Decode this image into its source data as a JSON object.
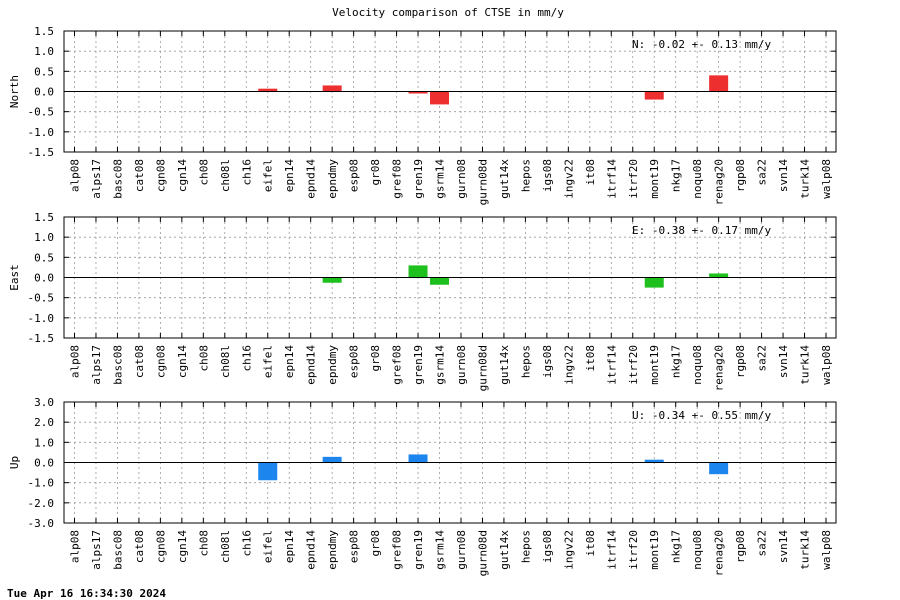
{
  "title": "Velocity comparison of CTSE in mm/y",
  "footer_timestamp": "Tue Apr 16 16:34:30 2024",
  "chart_data": [
    {
      "type": "bar",
      "ylabel": "North",
      "color": "#ee2f2f",
      "ylim": [
        -1.5,
        1.5
      ],
      "yticks": [
        "1.5",
        "1.0",
        "0.5",
        "0.0",
        "-0.5",
        "-1.0",
        "-1.5"
      ],
      "ytick_values": [
        1.5,
        1.0,
        0.5,
        0.0,
        -0.5,
        -1.0,
        -1.5
      ],
      "annotation": "N:  -0.02 +-  0.13 mm/y",
      "grid": true,
      "categories": [
        "alp08",
        "alps17",
        "basc08",
        "cat08",
        "cgn08",
        "cgn14",
        "ch08",
        "ch08l",
        "ch16",
        "eifel",
        "epn14",
        "epnd14",
        "epndmy",
        "esp08",
        "gr08",
        "gref08",
        "gren19",
        "gsrm14",
        "gurn08",
        "gurn08d",
        "gut14x",
        "hepos",
        "igs08",
        "ingv22",
        "it08",
        "itrf14",
        "itrf20",
        "mont19",
        "nkg17",
        "noqu08",
        "renag20",
        "rgp08",
        "sa22",
        "svn14",
        "turk14",
        "walp08"
      ],
      "values": [
        0,
        0,
        0,
        0,
        0,
        0,
        0,
        0,
        0,
        0.07,
        0,
        0,
        0.15,
        0,
        0,
        0,
        -0.05,
        -0.32,
        0,
        0,
        0,
        0,
        0,
        0,
        0,
        0,
        0,
        -0.2,
        0,
        0,
        0.4,
        0,
        0,
        0,
        0,
        0
      ]
    },
    {
      "type": "bar",
      "ylabel": "East",
      "color": "#1ec01e",
      "ylim": [
        -1.5,
        1.5
      ],
      "yticks": [
        "1.5",
        "1.0",
        "0.5",
        "0.0",
        "-0.5",
        "-1.0",
        "-1.5"
      ],
      "ytick_values": [
        1.5,
        1.0,
        0.5,
        0.0,
        -0.5,
        -1.0,
        -1.5
      ],
      "annotation": "E:  -0.38 +-  0.17 mm/y",
      "grid": true,
      "categories": [
        "alp08",
        "alps17",
        "basc08",
        "cat08",
        "cgn08",
        "cgn14",
        "ch08",
        "ch08l",
        "ch16",
        "eifel",
        "epn14",
        "epnd14",
        "epndmy",
        "esp08",
        "gr08",
        "gref08",
        "gren19",
        "gsrm14",
        "gurn08",
        "gurn08d",
        "gut14x",
        "hepos",
        "igs08",
        "ingv22",
        "it08",
        "itrf14",
        "itrf20",
        "mont19",
        "nkg17",
        "noqu08",
        "renag20",
        "rgp08",
        "sa22",
        "svn14",
        "turk14",
        "walp08"
      ],
      "values": [
        0,
        0,
        0,
        0,
        0,
        0,
        0,
        0,
        0,
        0,
        0,
        0,
        -0.13,
        0,
        0,
        0,
        0.3,
        -0.18,
        0,
        0,
        0,
        0,
        0,
        0,
        0,
        0,
        0,
        -0.25,
        0,
        0,
        0.1,
        0,
        0,
        0,
        0,
        0
      ]
    },
    {
      "type": "bar",
      "ylabel": "Up",
      "color": "#1c86ee",
      "ylim": [
        -3.0,
        3.0
      ],
      "yticks": [
        "3.0",
        "2.0",
        "1.0",
        "0.0",
        "-1.0",
        "-2.0",
        "-3.0"
      ],
      "ytick_values": [
        3.0,
        2.0,
        1.0,
        0.0,
        -1.0,
        -2.0,
        -3.0
      ],
      "annotation": "U:  -0.34 +-  0.55 mm/y",
      "grid": true,
      "categories": [
        "alp08",
        "alps17",
        "basc08",
        "cat08",
        "cgn08",
        "cgn14",
        "ch08",
        "ch08l",
        "ch16",
        "eifel",
        "epn14",
        "epnd14",
        "epndmy",
        "esp08",
        "gr08",
        "gref08",
        "gren19",
        "gsrm14",
        "gurn08",
        "gurn08d",
        "gut14x",
        "hepos",
        "igs08",
        "ingv22",
        "it08",
        "itrf14",
        "itrf20",
        "mont19",
        "nkg17",
        "noqu08",
        "renag20",
        "rgp08",
        "sa22",
        "svn14",
        "turk14",
        "walp08"
      ],
      "values": [
        0,
        0,
        0,
        0,
        0,
        0,
        0,
        0,
        0,
        -0.88,
        0,
        0,
        0.28,
        0,
        0,
        0,
        0.4,
        0,
        0,
        0,
        0,
        0,
        0,
        0,
        0,
        0,
        0,
        0.14,
        0,
        0,
        -0.58,
        0,
        0,
        0,
        0,
        0
      ]
    }
  ]
}
